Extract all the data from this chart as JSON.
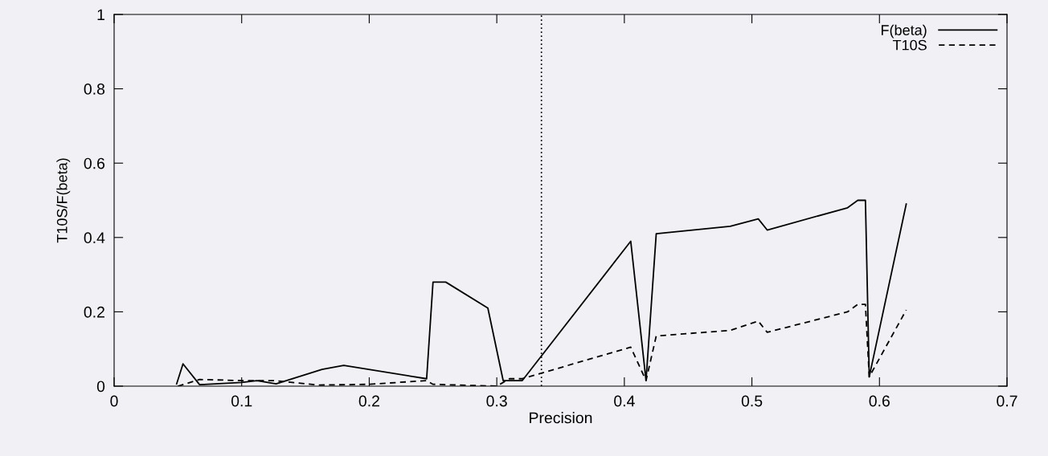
{
  "chart_data": {
    "type": "line",
    "xlabel": "Precision",
    "ylabel": "T10S/F(beta)",
    "xlim": [
      0,
      0.7
    ],
    "ylim": [
      0,
      1
    ],
    "xticks": [
      0,
      0.1,
      0.2,
      0.3,
      0.4,
      0.5,
      0.6,
      0.7
    ],
    "yticks": [
      0,
      0.2,
      0.4,
      0.6,
      0.8,
      1
    ],
    "grid": false,
    "legend": "top right",
    "marker": "none",
    "ref_lines": [
      {
        "axis": "x",
        "value": 0.335,
        "color": "#000000",
        "line_style": "dotted"
      }
    ],
    "series": [
      {
        "name": "F(beta)",
        "color": "#000000",
        "line_style": "solid",
        "x": [
          0.049,
          0.054,
          0.067,
          0.1,
          0.112,
          0.127,
          0.163,
          0.18,
          0.245,
          0.25,
          0.26,
          0.293,
          0.305,
          0.32,
          0.405,
          0.417,
          0.425,
          0.483,
          0.505,
          0.512,
          0.575,
          0.583,
          0.589,
          0.592,
          0.621
        ],
        "values": [
          0.006,
          0.06,
          0.004,
          0.01,
          0.015,
          0.006,
          0.045,
          0.056,
          0.02,
          0.28,
          0.28,
          0.21,
          0.015,
          0.015,
          0.39,
          0.015,
          0.41,
          0.43,
          0.45,
          0.42,
          0.48,
          0.5,
          0.5,
          0.025,
          0.49
        ]
      },
      {
        "name": "T10S",
        "color": "#000000",
        "line_style": "dashed",
        "x": [
          0.05,
          0.067,
          0.1,
          0.125,
          0.16,
          0.2,
          0.245,
          0.25,
          0.3,
          0.31,
          0.32,
          0.405,
          0.417,
          0.425,
          0.483,
          0.505,
          0.512,
          0.575,
          0.583,
          0.589,
          0.592,
          0.621
        ],
        "values": [
          0,
          0.018,
          0.015,
          0.015,
          0.003,
          0.005,
          0.015,
          0.005,
          0,
          0.02,
          0.02,
          0.105,
          0.015,
          0.135,
          0.15,
          0.175,
          0.145,
          0.2,
          0.22,
          0.22,
          0.025,
          0.205
        ]
      }
    ]
  }
}
